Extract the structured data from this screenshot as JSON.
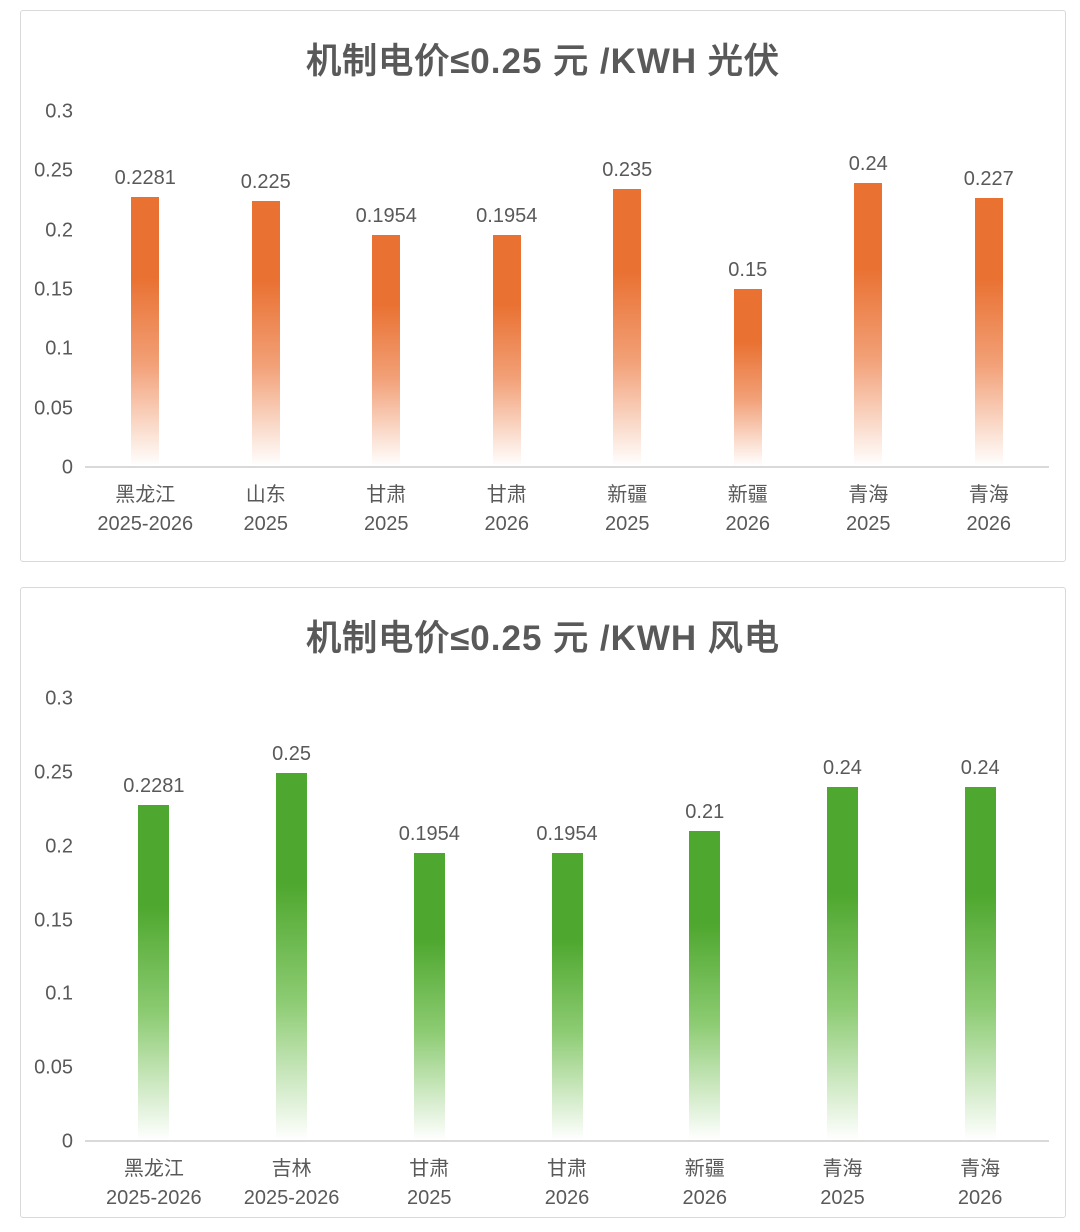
{
  "page": {
    "background": "#ffffff",
    "card_border_color": "#d9d9d9"
  },
  "chart_data": [
    {
      "type": "bar",
      "title": "机制电价≤0.25 元 /KWH 光伏",
      "categories": [
        {
          "region": "黑龙江",
          "period": "2025-2026"
        },
        {
          "region": "山东",
          "period": "2025"
        },
        {
          "region": "甘肃",
          "period": "2025"
        },
        {
          "region": "甘肃",
          "period": "2026"
        },
        {
          "region": "新疆",
          "period": "2025"
        },
        {
          "region": "新疆",
          "period": "2026"
        },
        {
          "region": "青海",
          "period": "2025"
        },
        {
          "region": "青海",
          "period": "2026"
        }
      ],
      "values": [
        0.2281,
        0.225,
        0.1954,
        0.1954,
        0.235,
        0.15,
        0.24,
        0.227
      ],
      "labels": [
        "0.2281",
        "0.225",
        "0.1954",
        "0.1954",
        "0.235",
        "0.15",
        "0.24",
        "0.227"
      ],
      "y_ticks": [
        "0.3",
        "0.25",
        "0.2",
        "0.15",
        "0.1",
        "0.05",
        "0"
      ],
      "ylim": [
        0,
        0.3
      ],
      "grid": false,
      "legend": false,
      "xlabel": "",
      "ylabel": "",
      "bar_gradient": [
        "#E97132",
        "#F2A077",
        "#FFFFFF"
      ],
      "title_color": "#595959",
      "axis_label_color": "#595959",
      "data_label_color": "#595959",
      "baseline_color": "#D9D9D9"
    },
    {
      "type": "bar",
      "title": "机制电价≤0.25 元 /KWH 风电",
      "categories": [
        {
          "region": "黑龙江",
          "period": "2025-2026"
        },
        {
          "region": "吉林",
          "period": "2025-2026"
        },
        {
          "region": "甘肃",
          "period": "2025"
        },
        {
          "region": "甘肃",
          "period": "2026"
        },
        {
          "region": "新疆",
          "period": "2026"
        },
        {
          "region": "青海",
          "period": "2025"
        },
        {
          "region": "青海",
          "period": "2026"
        }
      ],
      "values": [
        0.2281,
        0.25,
        0.1954,
        0.1954,
        0.21,
        0.24,
        0.24
      ],
      "labels": [
        "0.2281",
        "0.25",
        "0.1954",
        "0.1954",
        "0.21",
        "0.24",
        "0.24"
      ],
      "y_ticks": [
        "0.3",
        "0.25",
        "0.2",
        "0.15",
        "0.1",
        "0.05",
        "0"
      ],
      "ylim": [
        0,
        0.3
      ],
      "grid": false,
      "legend": false,
      "xlabel": "",
      "ylabel": "",
      "bar_gradient": [
        "#4EA72E",
        "#8CCB72",
        "#FFFFFF"
      ],
      "title_color": "#595959",
      "axis_label_color": "#595959",
      "data_label_color": "#595959",
      "baseline_color": "#D9D9D9"
    }
  ]
}
